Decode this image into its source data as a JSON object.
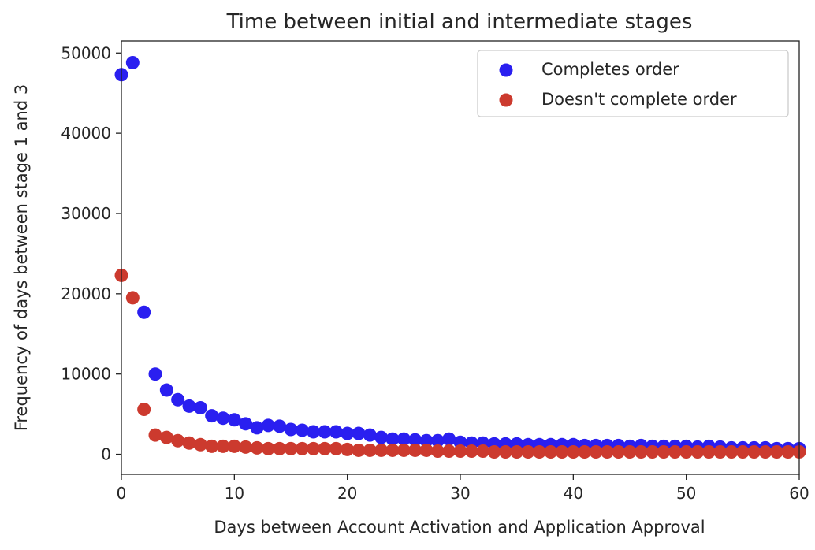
{
  "chart_data": {
    "type": "scatter",
    "title": "Time between initial and intermediate stages",
    "xlabel": "Days between Account Activation and Application Approval",
    "ylabel": "Frequency of days between stage 1 and 3",
    "xlim": [
      0,
      60
    ],
    "ylim": [
      -2500,
      51500
    ],
    "xticks": [
      "0",
      "10",
      "20",
      "30",
      "40",
      "50",
      "60"
    ],
    "yticks": [
      "0",
      "10000",
      "20000",
      "30000",
      "40000",
      "50000"
    ],
    "grid": false,
    "legend_position": "top-right",
    "series": [
      {
        "name": "Completes order",
        "color": "#2a1ff0",
        "x": [
          0,
          1,
          2,
          3,
          4,
          5,
          6,
          7,
          8,
          9,
          10,
          11,
          12,
          13,
          14,
          15,
          16,
          17,
          18,
          19,
          20,
          21,
          22,
          23,
          24,
          25,
          26,
          27,
          28,
          29,
          30,
          31,
          32,
          33,
          34,
          35,
          36,
          37,
          38,
          39,
          40,
          41,
          42,
          43,
          44,
          45,
          46,
          47,
          48,
          49,
          50,
          51,
          52,
          53,
          54,
          55,
          56,
          57,
          58,
          59,
          60
        ],
        "y": [
          47300,
          48800,
          17700,
          10000,
          8000,
          6800,
          6000,
          5800,
          4800,
          4500,
          4300,
          3800,
          3300,
          3600,
          3500,
          3100,
          3000,
          2800,
          2800,
          2800,
          2600,
          2600,
          2400,
          2100,
          1900,
          1900,
          1800,
          1700,
          1700,
          1900,
          1500,
          1400,
          1400,
          1300,
          1300,
          1300,
          1200,
          1200,
          1200,
          1200,
          1200,
          1100,
          1100,
          1100,
          1100,
          1000,
          1100,
          1000,
          1000,
          1000,
          1000,
          900,
          1000,
          900,
          800,
          800,
          800,
          800,
          700,
          700,
          700
        ]
      },
      {
        "name": "Doesn't complete order",
        "color": "#cc3a2e",
        "x": [
          0,
          1,
          2,
          3,
          4,
          5,
          6,
          7,
          8,
          9,
          10,
          11,
          12,
          13,
          14,
          15,
          16,
          17,
          18,
          19,
          20,
          21,
          22,
          23,
          24,
          25,
          26,
          27,
          28,
          29,
          30,
          31,
          32,
          33,
          34,
          35,
          36,
          37,
          38,
          39,
          40,
          41,
          42,
          43,
          44,
          45,
          46,
          47,
          48,
          49,
          50,
          51,
          52,
          53,
          54,
          55,
          56,
          57,
          58,
          59,
          60
        ],
        "y": [
          22300,
          19500,
          5600,
          2400,
          2100,
          1700,
          1400,
          1200,
          1000,
          1000,
          1000,
          900,
          800,
          700,
          700,
          700,
          700,
          700,
          700,
          700,
          600,
          500,
          500,
          500,
          500,
          500,
          500,
          500,
          400,
          400,
          400,
          400,
          400,
          300,
          300,
          300,
          300,
          300,
          300,
          300,
          300,
          300,
          300,
          300,
          300,
          300,
          300,
          300,
          300,
          300,
          300,
          300,
          300,
          300,
          300,
          300,
          300,
          300,
          300,
          300,
          300
        ]
      }
    ]
  }
}
